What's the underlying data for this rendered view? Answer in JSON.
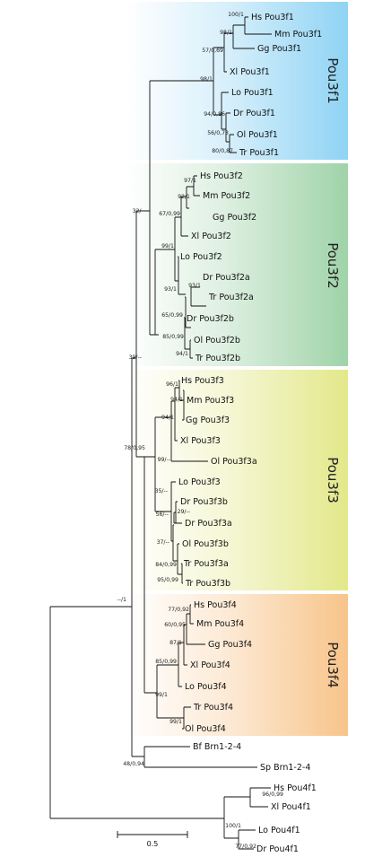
{
  "groups": [
    {
      "id": "pou3f1",
      "label": "Pou3f1",
      "color": "#8fd3f4"
    },
    {
      "id": "pou3f2",
      "label": "Pou3f2",
      "color": "#9fd3a8"
    },
    {
      "id": "pou3f3",
      "label": "Pou3f3",
      "color": "#e3e88a"
    },
    {
      "id": "pou3f4",
      "label": "Pou3f4",
      "color": "#f8c48a"
    }
  ],
  "taxa": [
    {
      "sp": "Hs",
      "gene": "Pou3f1"
    },
    {
      "sp": "Mm",
      "gene": "Pou3f1"
    },
    {
      "sp": "Gg",
      "gene": "Pou3f1"
    },
    {
      "sp": "Xl",
      "gene": "Pou3f1"
    },
    {
      "sp": "Lo",
      "gene": "Pou3f1"
    },
    {
      "sp": "Dr",
      "gene": "Pou3f1"
    },
    {
      "sp": "Ol",
      "gene": "Pou3f1"
    },
    {
      "sp": "Tr",
      "gene": "Pou3f1"
    },
    {
      "sp": "Hs",
      "gene": "Pou3f2"
    },
    {
      "sp": "Mm",
      "gene": "Pou3f2"
    },
    {
      "sp": "Gg",
      "gene": "Pou3f2"
    },
    {
      "sp": "Xl",
      "gene": "Pou3f2"
    },
    {
      "sp": "Lo",
      "gene": "Pou3f2"
    },
    {
      "sp": "Dr",
      "gene": "Pou3f2a"
    },
    {
      "sp": "Tr",
      "gene": "Pou3f2a"
    },
    {
      "sp": "Dr",
      "gene": "Pou3f2b"
    },
    {
      "sp": "Ol",
      "gene": "Pou3f2b"
    },
    {
      "sp": "Tr",
      "gene": "Pou3f2b"
    },
    {
      "sp": "Hs",
      "gene": "Pou3f3"
    },
    {
      "sp": "Mm",
      "gene": "Pou3f3"
    },
    {
      "sp": "Gg",
      "gene": "Pou3f3"
    },
    {
      "sp": "Xl",
      "gene": "Pou3f3"
    },
    {
      "sp": "Ol",
      "gene": "Pou3f3a"
    },
    {
      "sp": "Lo",
      "gene": "Pou3f3"
    },
    {
      "sp": "Dr",
      "gene": "Pou3f3b"
    },
    {
      "sp": "Dr",
      "gene": "Pou3f3a"
    },
    {
      "sp": "Ol",
      "gene": "Pou3f3b"
    },
    {
      "sp": "Tr",
      "gene": "Pou3f3a"
    },
    {
      "sp": "Tr",
      "gene": "Pou3f3b"
    },
    {
      "sp": "Hs",
      "gene": "Pou3f4"
    },
    {
      "sp": "Mm",
      "gene": "Pou3f4"
    },
    {
      "sp": "Gg",
      "gene": "Pou3f4"
    },
    {
      "sp": "Xl",
      "gene": "Pou3f4"
    },
    {
      "sp": "Lo",
      "gene": "Pou3f4"
    },
    {
      "sp": "Tr",
      "gene": "Pou3f4"
    },
    {
      "sp": "Ol",
      "gene": "Pou3f4"
    },
    {
      "sp": "Bf",
      "gene": "Brn1-2-4"
    },
    {
      "sp": "Sp",
      "gene": "Brn1-2-4"
    },
    {
      "sp": "Hs",
      "gene": "Pou4f1"
    },
    {
      "sp": "Xl",
      "gene": "Pou4f1"
    },
    {
      "sp": "Lo",
      "gene": "Pou4f1"
    },
    {
      "sp": "Dr",
      "gene": "Pou4f1"
    }
  ],
  "support": [
    "100/1",
    "98/1",
    "57/0,69",
    "98/1",
    "94/0,86",
    "56/0,73",
    "80/0,87",
    "97/1",
    "92/1",
    "67/0,99",
    "32/--",
    "99/1",
    "93/1",
    "93/1",
    "65/0,99",
    "85/0,99",
    "94/1",
    "39/--",
    "96/1",
    "94/1",
    "94/1",
    "99/--",
    "35/--",
    "29/--",
    "56/--",
    "37/--",
    "84/0,99",
    "95/0,99",
    "78/0,95",
    "77/0,92",
    "60/0,95",
    "87/1",
    "85/0,99",
    "99/1",
    "99/1",
    "--/1",
    "48/0,94",
    "96/0,99",
    "100/1",
    "77/0,92"
  ],
  "scale_bar": {
    "label": "0.5"
  }
}
